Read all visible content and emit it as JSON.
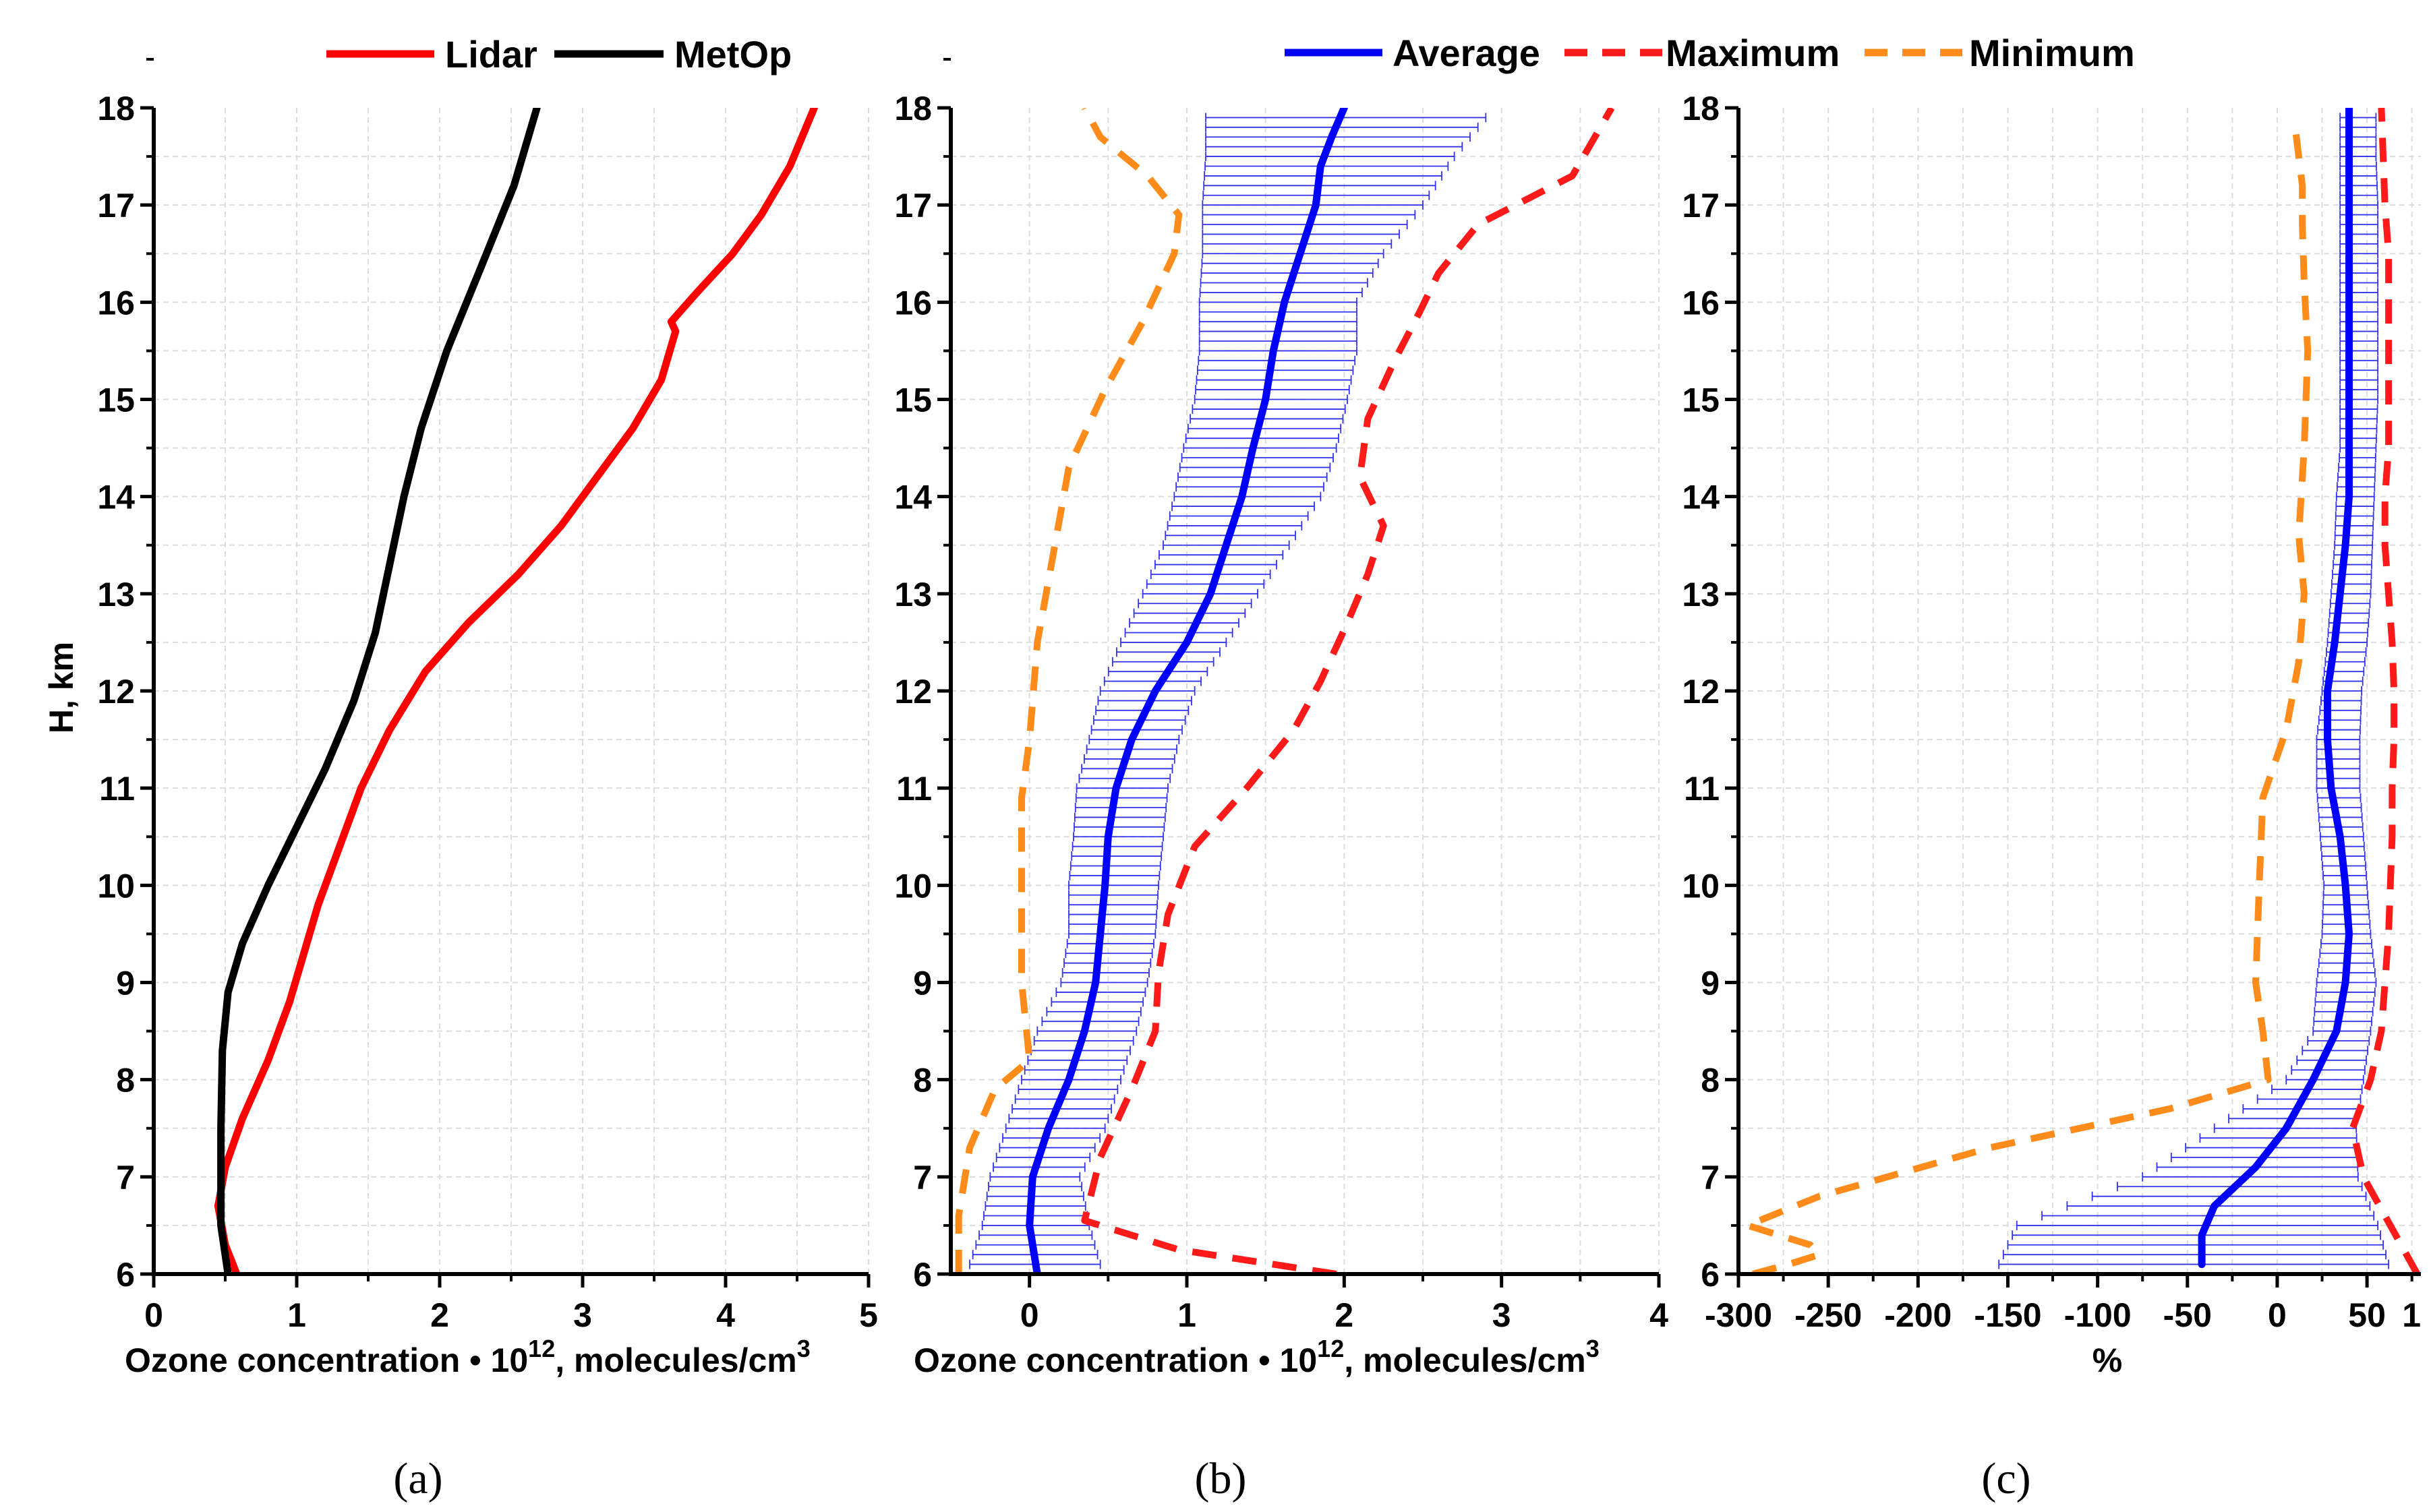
{
  "figure": {
    "panel_labels": [
      "(a)",
      "(b)",
      "(c)"
    ]
  },
  "chart_data": [
    {
      "type": "line",
      "panel": "a",
      "xlabel": "Ozone concentration • 10",
      "xlabel_sup": "12",
      "xlabel_tail": ", molecules/cm",
      "xlabel_sup2": "3",
      "ylabel": "H, km",
      "xlim": [
        0,
        5
      ],
      "ylim": [
        6,
        18
      ],
      "xticks": [
        0,
        1,
        2,
        3,
        4,
        5
      ],
      "yticks": [
        6,
        7,
        8,
        9,
        10,
        11,
        12,
        13,
        14,
        15,
        16,
        17,
        18
      ],
      "grid": true,
      "legend": [
        "Lidar",
        "MetOp"
      ],
      "series": [
        {
          "name": "Lidar",
          "color": "#ff0000",
          "style": "solid",
          "x": [
            0.58,
            0.5,
            0.45,
            0.5,
            0.62,
            0.8,
            0.95,
            1.05,
            1.15,
            1.3,
            1.45,
            1.65,
            1.9,
            2.2,
            2.55,
            2.85,
            3.1,
            3.35,
            3.55,
            3.65,
            3.62,
            3.8,
            4.05,
            4.25,
            4.45,
            4.62
          ],
          "y": [
            6,
            6.3,
            6.7,
            7.1,
            7.6,
            8.2,
            8.8,
            9.3,
            9.8,
            10.4,
            11.0,
            11.6,
            12.2,
            12.7,
            13.2,
            13.7,
            14.2,
            14.7,
            15.2,
            15.7,
            15.8,
            16.1,
            16.5,
            16.9,
            17.4,
            18
          ]
        },
        {
          "name": "MetOp",
          "color": "#000000",
          "style": "solid",
          "x": [
            0.52,
            0.47,
            0.47,
            0.48,
            0.52,
            0.62,
            0.8,
            1.0,
            1.2,
            1.4,
            1.55,
            1.65,
            1.75,
            1.87,
            2.05,
            2.3,
            2.52,
            2.68
          ],
          "y": [
            6,
            6.5,
            7.5,
            8.3,
            8.9,
            9.4,
            10.0,
            10.6,
            11.2,
            11.9,
            12.6,
            13.3,
            14.0,
            14.7,
            15.5,
            16.4,
            17.2,
            18
          ]
        }
      ]
    },
    {
      "type": "line",
      "panel": "b",
      "xlabel": "Ozone concentration • 10",
      "xlabel_sup": "12",
      "xlabel_tail": ", molecules/cm",
      "xlabel_sup2": "3",
      "xlim": [
        -0.5,
        4
      ],
      "ylim": [
        6,
        18
      ],
      "xticks": [
        0,
        1,
        2,
        3,
        4
      ],
      "yticks": [
        6,
        7,
        8,
        9,
        10,
        11,
        12,
        13,
        14,
        15,
        16,
        17,
        18
      ],
      "grid": true,
      "legend": [
        "Average",
        "Maximum",
        "Minimum"
      ],
      "errorbars": {
        "color": "#3333ee",
        "y": [
          6.1,
          6.5,
          7.0,
          7.5,
          8.0,
          8.5,
          9.0,
          9.5,
          10.0,
          10.5,
          11.0,
          11.5,
          12.0,
          12.5,
          13.0,
          13.5,
          14.0,
          14.5,
          15.0,
          15.5,
          16.0,
          16.5,
          17.0,
          17.5,
          17.9
        ],
        "lo": [
          -0.38,
          -0.3,
          -0.25,
          -0.15,
          -0.05,
          0.05,
          0.2,
          0.25,
          0.25,
          0.28,
          0.3,
          0.38,
          0.45,
          0.58,
          0.72,
          0.85,
          0.92,
          0.98,
          1.05,
          1.08,
          1.08,
          1.1,
          1.1,
          1.12,
          1.12
        ],
        "hi": [
          0.45,
          0.38,
          0.32,
          0.48,
          0.58,
          0.68,
          0.75,
          0.8,
          0.82,
          0.85,
          0.88,
          0.95,
          1.05,
          1.25,
          1.45,
          1.65,
          1.85,
          1.95,
          2.02,
          2.08,
          2.08,
          2.25,
          2.5,
          2.7,
          2.9
        ]
      },
      "series": [
        {
          "name": "Average",
          "color": "#0000ff",
          "style": "solid",
          "x": [
            0.05,
            0.0,
            0.02,
            0.12,
            0.25,
            0.35,
            0.42,
            0.45,
            0.48,
            0.5,
            0.55,
            0.65,
            0.8,
            1.0,
            1.15,
            1.25,
            1.35,
            1.42,
            1.5,
            1.55,
            1.62,
            1.72,
            1.82,
            1.85,
            1.92,
            2.0
          ],
          "y": [
            6,
            6.5,
            7.0,
            7.5,
            8.0,
            8.5,
            9.0,
            9.5,
            10.0,
            10.5,
            11.0,
            11.5,
            12.0,
            12.5,
            13.0,
            13.5,
            14.0,
            14.5,
            15.0,
            15.5,
            16.0,
            16.5,
            17.0,
            17.4,
            17.7,
            18
          ]
        },
        {
          "name": "Maximum",
          "color": "#ff1a1a",
          "style": "dashed",
          "x": [
            1.95,
            0.95,
            0.35,
            0.45,
            0.65,
            0.8,
            0.82,
            0.88,
            1.05,
            1.38,
            1.68,
            1.85,
            2.02,
            2.15,
            2.25,
            2.1,
            2.15,
            2.32,
            2.48,
            2.6,
            2.85,
            3.45,
            3.7
          ],
          "y": [
            6,
            6.25,
            6.55,
            7.2,
            7.9,
            8.5,
            9.1,
            9.7,
            10.4,
            11.0,
            11.6,
            12.1,
            12.7,
            13.2,
            13.7,
            14.2,
            14.8,
            15.4,
            15.9,
            16.3,
            16.8,
            17.3,
            18
          ]
        },
        {
          "name": "Minimum",
          "color": "#ff8c1a",
          "style": "dashed",
          "x": [
            -0.45,
            -0.45,
            -0.38,
            -0.22,
            0.0,
            -0.05,
            -0.05,
            -0.05,
            0.0,
            0.05,
            0.15,
            0.25,
            0.48,
            0.72,
            0.92,
            0.95,
            0.75,
            0.45,
            0.35
          ],
          "y": [
            6,
            6.6,
            7.3,
            7.9,
            8.2,
            9.0,
            10.0,
            10.9,
            11.5,
            12.5,
            13.4,
            14.3,
            15.1,
            15.8,
            16.5,
            16.9,
            17.3,
            17.7,
            18
          ]
        }
      ]
    },
    {
      "type": "line",
      "panel": "c",
      "xlabel": "%",
      "xlim": [
        -300,
        80
      ],
      "ylim": [
        6,
        18
      ],
      "xticks": [
        -300,
        -250,
        -200,
        -150,
        -100,
        -50,
        0,
        50
      ],
      "xtick_extra": "1",
      "yticks": [
        6,
        7,
        8,
        9,
        10,
        11,
        12,
        13,
        14,
        15,
        16,
        17,
        18
      ],
      "grid": true,
      "errorbars": {
        "color": "#3333ee",
        "y": [
          6.1,
          6.5,
          7.0,
          7.5,
          8.0,
          8.5,
          9.0,
          9.5,
          10.0,
          10.5,
          11.0,
          11.5,
          12.0,
          12.5,
          13.0,
          13.5,
          14.0,
          14.5,
          15.0,
          15.5,
          16.0,
          16.5,
          17.0,
          17.5,
          17.9
        ],
        "lo": [
          -155,
          -145,
          -75,
          -35,
          5,
          20,
          22,
          25,
          26,
          24,
          22,
          22,
          25,
          28,
          30,
          32,
          33,
          35,
          35,
          35,
          35,
          35,
          35,
          35,
          35
        ],
        "hi": [
          62,
          56,
          45,
          44,
          48,
          52,
          55,
          52,
          50,
          48,
          46,
          46,
          47,
          50,
          52,
          53,
          54,
          55,
          56,
          56,
          56,
          56,
          56,
          55,
          55
        ]
      },
      "series": [
        {
          "name": "Average",
          "color": "#0000ff",
          "style": "solid",
          "x": [
            -42,
            -42,
            -35,
            -12,
            5,
            20,
            33,
            38,
            40,
            38,
            35,
            30,
            28,
            28,
            32,
            35,
            38,
            40,
            40,
            40,
            40,
            40,
            40,
            40,
            40
          ],
          "y": [
            6.1,
            6.4,
            6.7,
            7.1,
            7.5,
            8.0,
            8.5,
            9.0,
            9.5,
            10.0,
            10.5,
            11.0,
            11.5,
            12.0,
            12.5,
            13.0,
            13.5,
            14.0,
            14.5,
            15.0,
            15.5,
            16.0,
            16.5,
            17.0,
            18
          ]
        },
        {
          "name": "Maximum",
          "color": "#ff1a1a",
          "style": "dashed",
          "x": [
            78,
            60,
            48,
            42,
            52,
            58,
            60,
            62,
            63,
            64,
            64,
            65,
            65,
            64,
            62,
            60,
            60,
            62,
            62,
            62,
            62,
            62,
            60,
            58
          ],
          "y": [
            6.0,
            6.6,
            7.0,
            7.5,
            8.0,
            8.5,
            9.0,
            9.5,
            10.0,
            10.5,
            11.0,
            11.5,
            12.0,
            12.5,
            13.0,
            13.5,
            14.0,
            14.5,
            15.0,
            15.5,
            16.0,
            16.5,
            17.0,
            18
          ]
        },
        {
          "name": "Minimum",
          "color": "#ff8c1a",
          "style": "dashed",
          "x": [
            -292,
            -272,
            -255,
            -260,
            -295,
            -255,
            -160,
            -60,
            -5,
            -8,
            -12,
            -10,
            -8,
            5,
            12,
            15,
            12,
            15,
            17,
            15,
            14,
            14,
            12,
            10
          ],
          "y": [
            6.0,
            6.1,
            6.2,
            6.3,
            6.5,
            6.8,
            7.3,
            7.7,
            8.0,
            8.5,
            9.0,
            10.0,
            10.9,
            11.6,
            12.3,
            13.0,
            13.6,
            14.5,
            15.5,
            16.2,
            16.8,
            17.2,
            17.5,
            17.8
          ]
        }
      ]
    }
  ]
}
